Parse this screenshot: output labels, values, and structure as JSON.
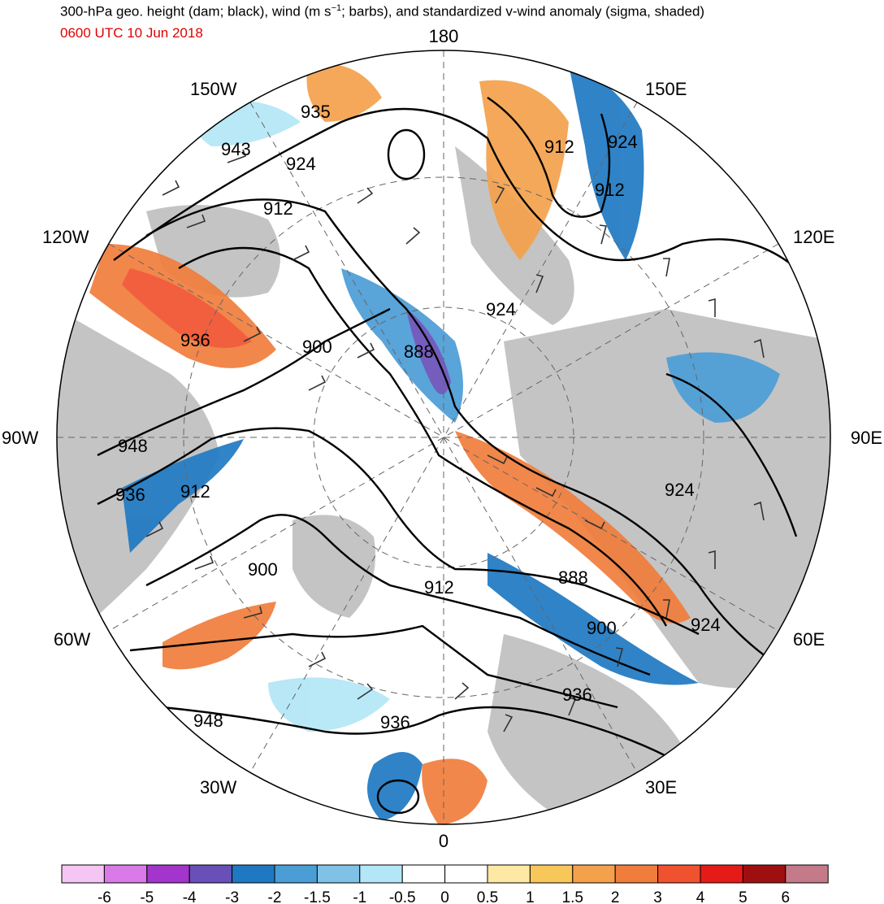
{
  "title": {
    "pre": "300-hPa geo. height (dam; black), wind (m s",
    "sup": "−1",
    "post": "; barbs), and standardized v-wind anomaly (sigma, shaded)"
  },
  "subtitle": "0600 UTC 10 Jun 2018",
  "longitude_labels": {
    "top": "180",
    "bottom": "0",
    "left": "90W",
    "right": "90E",
    "w150": "150W",
    "e150": "150E",
    "w120": "120W",
    "e120": "120E",
    "w60": "60W",
    "e60": "60E",
    "w30": "30W",
    "e30": "30E"
  },
  "contour_labels": [
    "935",
    "943",
    "924",
    "912",
    "936",
    "900",
    "888",
    "948",
    "936",
    "912",
    "900",
    "912",
    "888",
    "924",
    "912",
    "924",
    "912",
    "924",
    "900",
    "936",
    "948",
    "936",
    "924"
  ],
  "colorbar": {
    "ticks": [
      "-6",
      "-5",
      "-4",
      "-3",
      "-2",
      "-1.5",
      "-1",
      "-0.5",
      "0",
      "0.5",
      "1",
      "1.5",
      "2",
      "3",
      "4",
      "5",
      "6"
    ],
    "colors": [
      "#f5c5f3",
      "#d97ae8",
      "#a334cc",
      "#6950b8",
      "#1f79c2",
      "#4b9dd6",
      "#7fc2e6",
      "#b3e6f6",
      "#ffffff",
      "#ffffff",
      "#fde9a3",
      "#f7c75a",
      "#f4a14b",
      "#f07d3c",
      "#f0522f",
      "#e61a17",
      "#a00f0f",
      "#c57a8a"
    ]
  },
  "colors": {
    "land": "#c4c4c4",
    "contour": "#000000",
    "barb": "#333333",
    "subtitle": "#e00000"
  }
}
